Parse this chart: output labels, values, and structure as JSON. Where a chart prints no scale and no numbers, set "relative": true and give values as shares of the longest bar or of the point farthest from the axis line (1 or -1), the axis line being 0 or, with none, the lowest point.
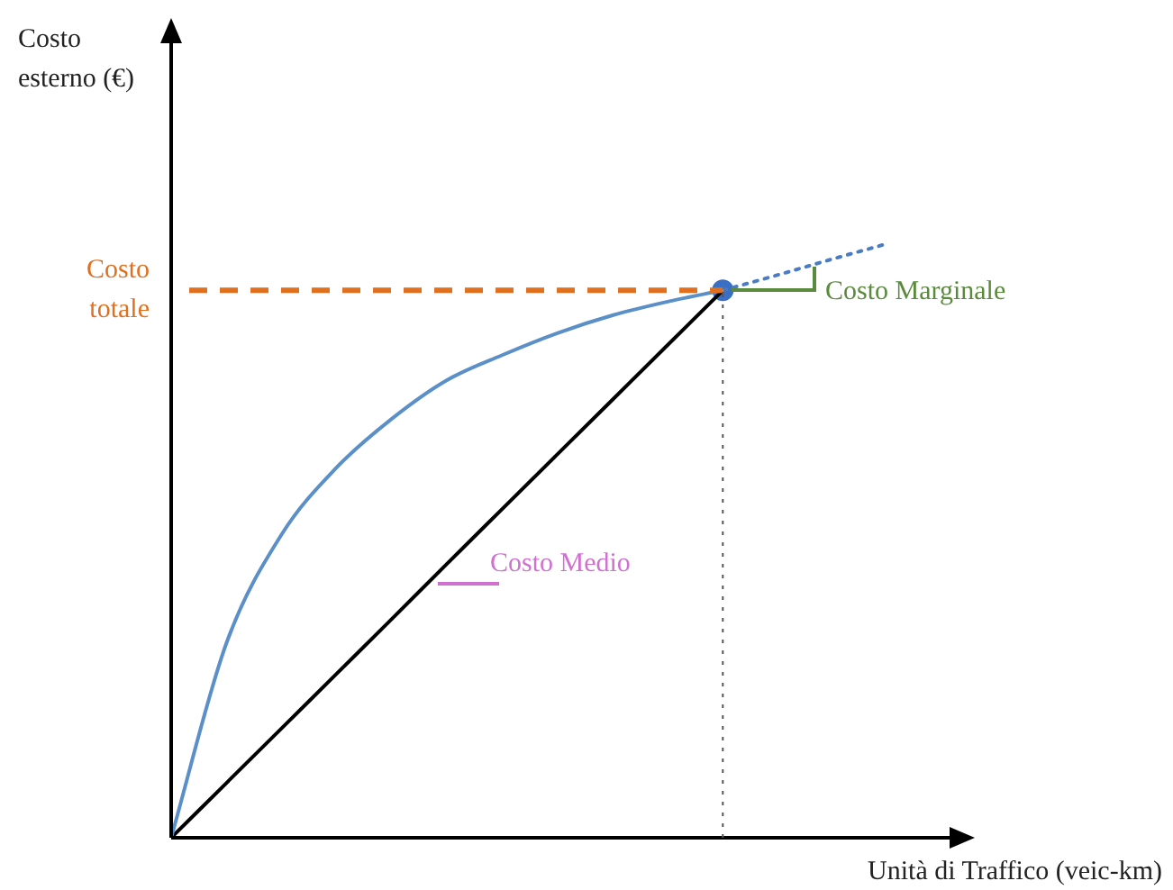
{
  "chart_data": {
    "type": "line",
    "relative": true,
    "xlabel": "Unità di Traffico (veic-km)",
    "grid": false,
    "legend": false,
    "categories": [
      null,
      null,
      null,
      null,
      null,
      null,
      null,
      null,
      null,
      null,
      null,
      null,
      null,
      null
    ],
    "series": [
      {
        "color": "#5b8fc7",
        "values": [
          0,
          0.327,
          0.51,
          0.623,
          0.705,
          0.77,
          0.812,
          0.849,
          0.879,
          0.902,
          0.921,
          null,
          null,
          null
        ],
        "marker": "none",
        "line_style": "solid"
      },
      {
        "color": "#000000",
        "values": [
          0,
          0.092,
          0.184,
          0.276,
          0.368,
          0.461,
          0.553,
          0.645,
          0.737,
          0.829,
          0.921,
          null,
          null,
          null
        ],
        "marker": "none",
        "line_style": "solid"
      },
      {
        "color": "#4a7cc4",
        "values": [
          null,
          null,
          null,
          null,
          null,
          null,
          null,
          null,
          null,
          null,
          0.921,
          0.947,
          0.974,
          1
        ],
        "marker": "none",
        "line_style": "dotted"
      },
      {
        "color": "#3a6fc4",
        "values": [
          null,
          null,
          null,
          null,
          null,
          null,
          null,
          null,
          null,
          null,
          0.921,
          null,
          null,
          null
        ],
        "marker": "circle"
      }
    ],
    "ref_lines": [
      {
        "axis": "y",
        "value": 0.921,
        "label": "Costo totale",
        "color": "#e07020",
        "line_style": "dashed"
      },
      {
        "axis": "x",
        "color": "#555555",
        "line_style": "dotted"
      }
    ],
    "annotations": [
      "Costo esterno (€)",
      "Costo Marginale",
      "Costo Medio"
    ]
  }
}
